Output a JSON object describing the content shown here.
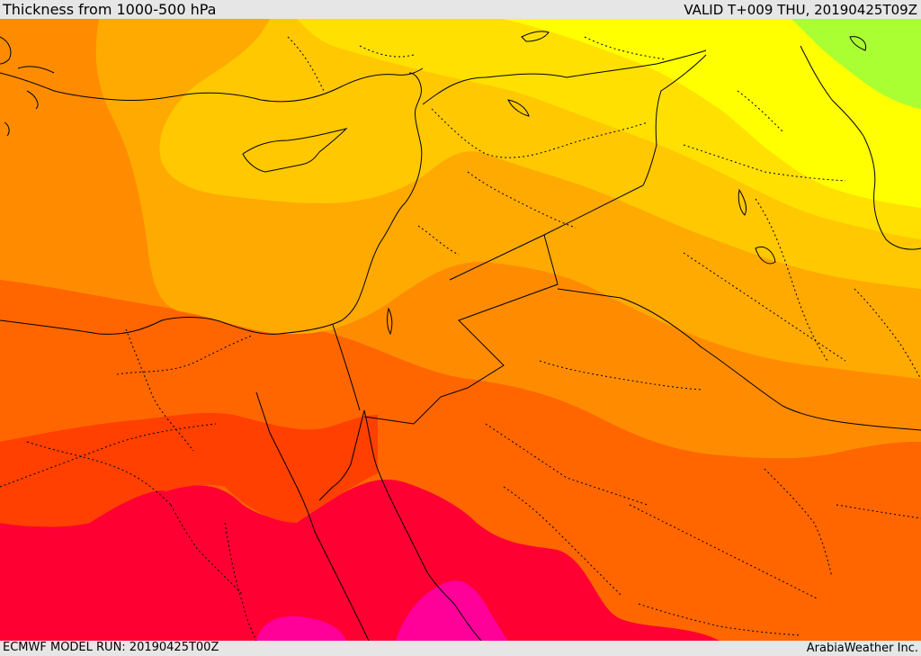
{
  "header": {
    "title": "Thickness from 1000-500 hPa",
    "valid": "VALID T+009 THU, 20190425T09Z"
  },
  "footer": {
    "model_run": "ECMWF MODEL RUN: 20190425T00Z",
    "credit": "ArabiaWeather Inc."
  },
  "colors": {
    "band_1": "#aaff33",
    "band_2": "#ffff00",
    "band_3": "#ffe000",
    "band_4": "#ffc800",
    "band_5": "#ffaa00",
    "band_6": "#ff8c00",
    "band_7": "#ff6600",
    "band_8": "#ff4000",
    "band_9": "#ff0033",
    "band_10": "#ff0099",
    "coastline": "#000000",
    "borders": "#000000"
  }
}
